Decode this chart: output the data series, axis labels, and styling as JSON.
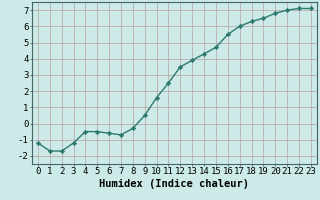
{
  "x": [
    0,
    1,
    2,
    3,
    4,
    5,
    6,
    7,
    8,
    9,
    10,
    11,
    12,
    13,
    14,
    15,
    16,
    17,
    18,
    19,
    20,
    21,
    22,
    23
  ],
  "y": [
    -1.2,
    -1.7,
    -1.7,
    -1.2,
    -0.5,
    -0.5,
    -0.6,
    -0.7,
    -0.3,
    0.5,
    1.6,
    2.5,
    3.5,
    3.9,
    4.3,
    4.7,
    5.5,
    6.0,
    6.3,
    6.5,
    6.8,
    7.0,
    7.1,
    7.1
  ],
  "line_color": "#2d7a6e",
  "marker": "D",
  "marker_size": 2.2,
  "background_color": "#cceae8",
  "grid_color": "#b8a0a0",
  "xlabel": "Humidex (Indice chaleur)",
  "xlim": [
    -0.5,
    23.5
  ],
  "ylim": [
    -2.5,
    7.5
  ],
  "yticks": [
    -2,
    -1,
    0,
    1,
    2,
    3,
    4,
    5,
    6,
    7
  ],
  "xticks": [
    0,
    1,
    2,
    3,
    4,
    5,
    6,
    7,
    8,
    9,
    10,
    11,
    12,
    13,
    14,
    15,
    16,
    17,
    18,
    19,
    20,
    21,
    22,
    23
  ],
  "tick_label_fontsize": 6.5,
  "xlabel_fontsize": 7.5,
  "line_width": 1.0
}
